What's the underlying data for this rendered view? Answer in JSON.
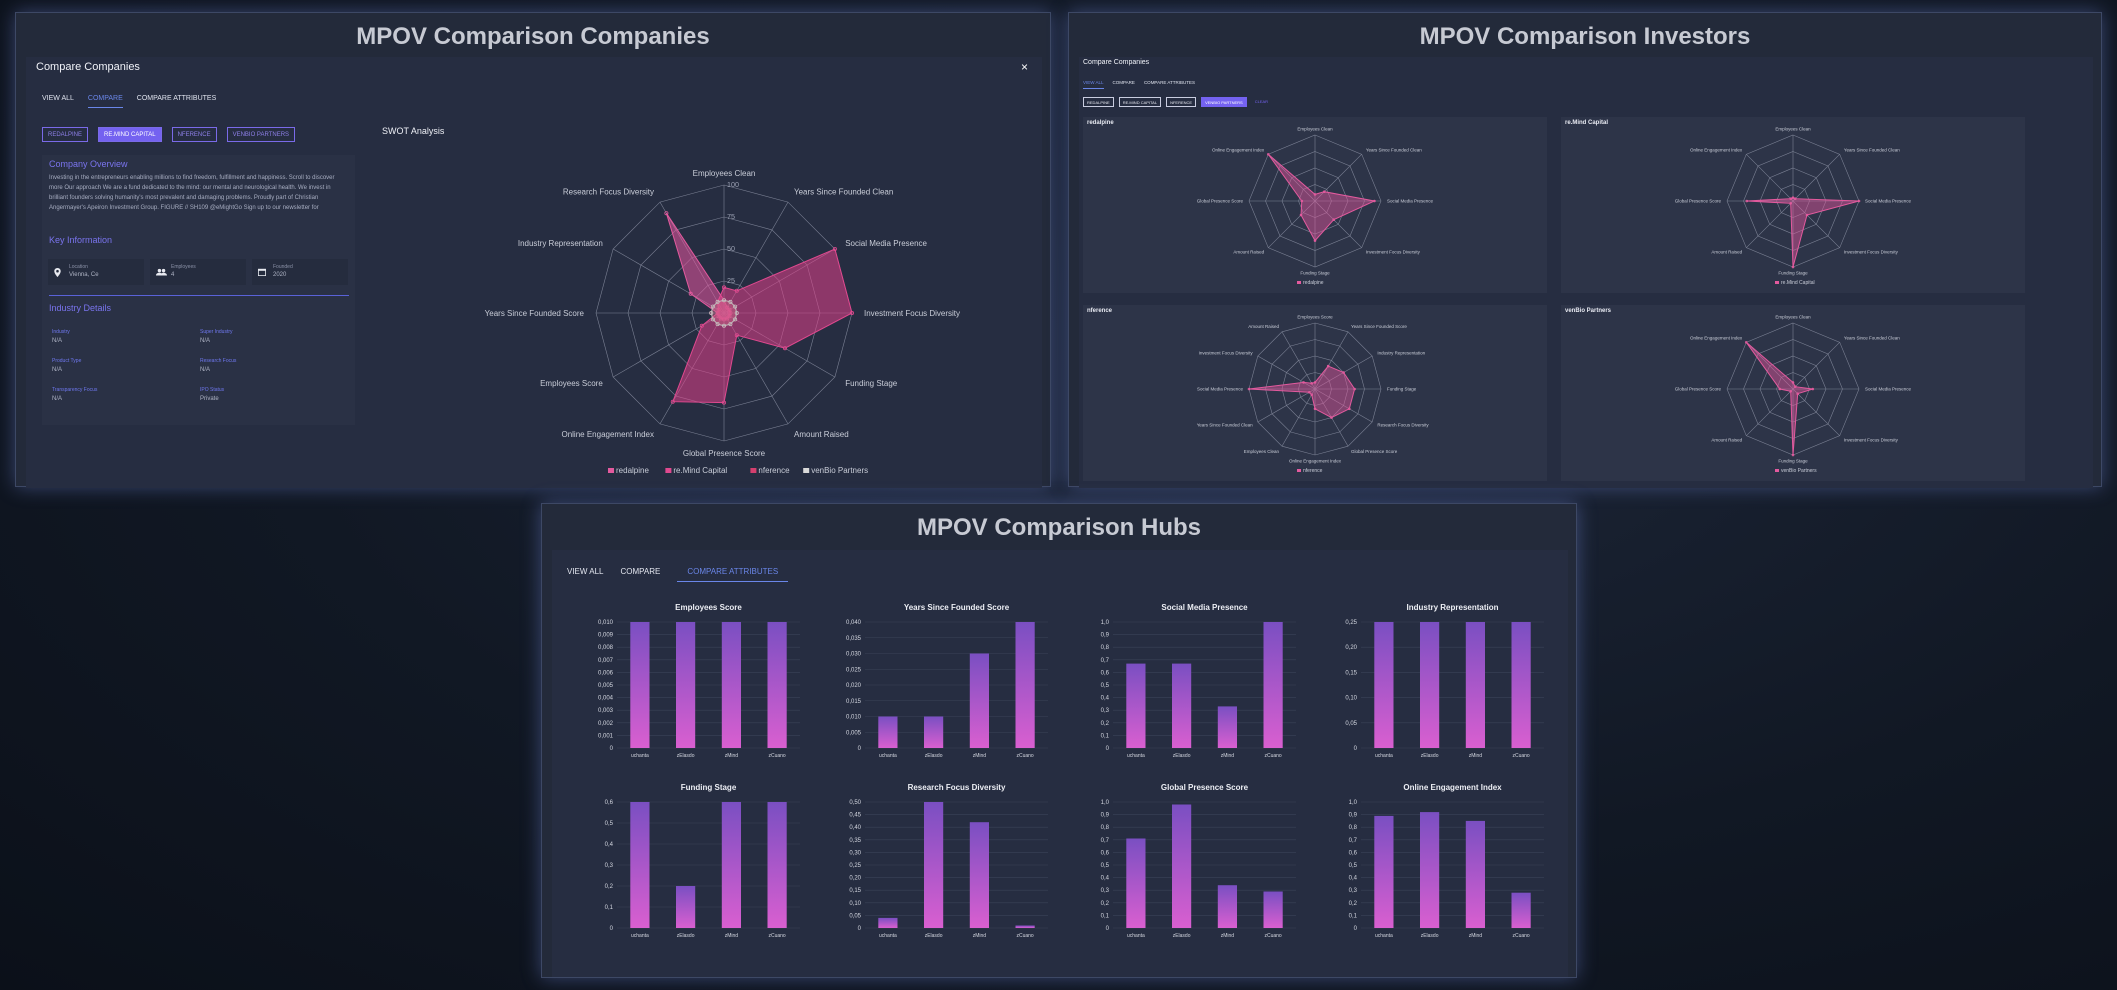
{
  "companies_panel": {
    "title": "MPOV Comparison Companies",
    "modal_title": "Compare Companies",
    "close_label": "×",
    "tabs": [
      "VIEW ALL",
      "COMPARE",
      "COMPARE ATTRIBUTES"
    ],
    "chips": [
      "REDALPINE",
      "RE.MIND CAPITAL",
      "NFERENCE",
      "VENBIO PARTNERS"
    ],
    "overview_heading": "Company Overview",
    "overview_text": "Investing in the entrepreneurs enabling millions to find freedom, fulfillment and happiness. Scroll to discover more Our approach We are a fund dedicated to the mind: our mental and neurological health. We invest in brilliant founders solving humanity's most prevalent and damaging problems. Proudly part of Christian Angermayer's Apeiron Investment Group. FIGURE // SH109 @eMightGo Sign up to our newsletter for",
    "key_info_heading": "Key Information",
    "key_info": [
      {
        "label": "Location",
        "value": "Vienna, Ce",
        "icon": "location-pin-icon"
      },
      {
        "label": "Employees",
        "value": "4",
        "icon": "people-icon"
      },
      {
        "label": "Founded",
        "value": "2020",
        "icon": "calendar-icon"
      }
    ],
    "industry_heading": "Industry Details",
    "industry": [
      {
        "label": "Industry",
        "value": "N/A"
      },
      {
        "label": "Super Industry",
        "value": "N/A"
      },
      {
        "label": "Product Type",
        "value": "N/A"
      },
      {
        "label": "Research Focus",
        "value": "N/A"
      },
      {
        "label": "Transparency Focus",
        "value": "N/A"
      },
      {
        "label": "IPO Status",
        "value": "Private"
      }
    ],
    "swot_heading": "SWOT Analysis",
    "radar": {
      "axes": [
        "Employees Clean",
        "Years Since Founded Clean",
        "Social Media Presence",
        "Investment Focus Diversity",
        "Funding Stage",
        "Amount Raised",
        "Global Presence Score",
        "Online Engagement Index",
        "Employees Score",
        "Years Since Founded Score",
        "Industry Representation",
        "Research Focus Diversity"
      ],
      "ticks": [
        "100",
        "75",
        "50",
        "25",
        "0"
      ],
      "legend": [
        "redalpine",
        "re.Mind Capital",
        "nference",
        "venBio Partners"
      ],
      "series": [
        {
          "name": "redalpine",
          "values": [
            10,
            5,
            5,
            5,
            5,
            5,
            5,
            5,
            5,
            5,
            30,
            90
          ]
        },
        {
          "name": "re.Mind Capital",
          "values": [
            20,
            20,
            100,
            100,
            55,
            20,
            70,
            80,
            20,
            5,
            5,
            10
          ]
        },
        {
          "name": "nference",
          "values": [
            10,
            10,
            10,
            10,
            10,
            10,
            10,
            10,
            10,
            10,
            10,
            10
          ]
        },
        {
          "name": "venBio Partners",
          "values": [
            10,
            10,
            10,
            10,
            10,
            10,
            10,
            10,
            10,
            10,
            10,
            10
          ]
        }
      ]
    }
  },
  "investors_panel": {
    "title": "MPOV Comparison Investors",
    "modal_title": "Compare Companies",
    "tabs": [
      "VIEW ALL",
      "COMPARE",
      "COMPARE ATTRIBUTES"
    ],
    "chips": [
      "REDALPINE",
      "RE.MIND CAPITAL",
      "NFERENCE",
      "VENBIO PARTNERS",
      "CLEAR"
    ],
    "radars": [
      {
        "title": "redalpine",
        "legend": "redalpine",
        "axes": [
          "Employees Clean",
          "Years Since Founded Clean",
          "Social Media Presence",
          "Investment Focus Diversity",
          "Funding Stage",
          "Amount Raised",
          "Global Presence Score",
          "Online Engagement Index"
        ],
        "values": [
          10,
          20,
          90,
          40,
          60,
          30,
          20,
          100
        ]
      },
      {
        "title": "re.Mind Capital",
        "legend": "re.Mind Capital",
        "axes": [
          "Employees Clean",
          "Years Since Founded Clean",
          "Social Media Presence",
          "Investment Focus Diversity",
          "Funding Stage",
          "Amount Raised",
          "Global Presence Score",
          "Online Engagement Index"
        ],
        "values": [
          5,
          5,
          100,
          30,
          100,
          5,
          70,
          5
        ]
      },
      {
        "title": "nference",
        "legend": "nference",
        "axes": [
          "Employees Score",
          "Years Since Founded Score",
          "Industry Representation",
          "Funding Stage",
          "Research Focus Diversity",
          "Global Presence Score",
          "Online Engagement Index",
          "Employees Clean",
          "Years Since Founded Clean",
          "Social Media Presence",
          "Investment Focus Diversity",
          "Amount Raised"
        ],
        "values": [
          10,
          40,
          50,
          60,
          60,
          50,
          30,
          10,
          10,
          100,
          20,
          10
        ]
      },
      {
        "title": "venBio Partners",
        "legend": "venBio Partners",
        "axes": [
          "Employees Clean",
          "Years Since Founded Clean",
          "Social Media Presence",
          "Investment Focus Diversity",
          "Funding Stage",
          "Amount Raised",
          "Global Presence Score",
          "Online Engagement Index"
        ],
        "values": [
          10,
          5,
          30,
          10,
          100,
          5,
          20,
          100
        ]
      }
    ]
  },
  "hubs_panel": {
    "title": "MPOV Comparison Hubs",
    "tabs": [
      "VIEW ALL",
      "COMPARE",
      "COMPARE ATTRIBUTES"
    ],
    "charts": [
      {
        "title": "Employees Score",
        "ticks": [
          "0,010",
          "0,009",
          "0,008",
          "0,007",
          "0,006",
          "0,005",
          "0,004",
          "0,003",
          "0,002",
          "0,001",
          "0"
        ],
        "max": 0.01,
        "categories": [
          "uchanta",
          "zElasdo",
          "zMind",
          "zCuano"
        ],
        "values": [
          0.01,
          0.01,
          0.01,
          0.01
        ]
      },
      {
        "title": "Years Since Founded Score",
        "ticks": [
          "0,040",
          "0,035",
          "0,030",
          "0,025",
          "0,020",
          "0,015",
          "0,010",
          "0,005",
          "0"
        ],
        "max": 0.04,
        "categories": [
          "uchanta",
          "zElasdo",
          "zMind",
          "zCuano"
        ],
        "values": [
          0.01,
          0.01,
          0.03,
          0.04
        ]
      },
      {
        "title": "Social Media Presence",
        "ticks": [
          "1,0",
          "0,9",
          "0,8",
          "0,7",
          "0,6",
          "0,5",
          "0,4",
          "0,3",
          "0,2",
          "0,1",
          "0"
        ],
        "max": 1.0,
        "categories": [
          "uchanta",
          "zElasdo",
          "zMind",
          "zCuano"
        ],
        "values": [
          0.67,
          0.67,
          0.33,
          1.0
        ]
      },
      {
        "title": "Industry Representation",
        "ticks": [
          "0,25",
          "0,20",
          "0,15",
          "0,10",
          "0,05",
          "0"
        ],
        "max": 0.25,
        "categories": [
          "uchanta",
          "zElasdo",
          "zMind",
          "zCuano"
        ],
        "values": [
          0.25,
          0.25,
          0.25,
          0.25
        ]
      },
      {
        "title": "Funding Stage",
        "ticks": [
          "0,6",
          "0,5",
          "0,4",
          "0,3",
          "0,2",
          "0,1",
          "0"
        ],
        "max": 0.6,
        "categories": [
          "uchanta",
          "zElasdo",
          "zMind",
          "zCuano"
        ],
        "values": [
          0.6,
          0.2,
          0.6,
          0.6
        ]
      },
      {
        "title": "Research Focus Diversity",
        "ticks": [
          "0,50",
          "0,45",
          "0,40",
          "0,35",
          "0,30",
          "0,25",
          "0,20",
          "0,15",
          "0,10",
          "0,05",
          "0"
        ],
        "max": 0.5,
        "categories": [
          "uchanta",
          "zElasdo",
          "zMind",
          "zCuano"
        ],
        "values": [
          0.04,
          0.5,
          0.42,
          0.01
        ]
      },
      {
        "title": "Global Presence Score",
        "ticks": [
          "1,0",
          "0,9",
          "0,8",
          "0,7",
          "0,6",
          "0,5",
          "0,4",
          "0,3",
          "0,2",
          "0,1",
          "0"
        ],
        "max": 1.0,
        "categories": [
          "uchanta",
          "zElasdo",
          "zMind",
          "zCuano"
        ],
        "values": [
          0.71,
          0.98,
          0.34,
          0.29
        ]
      },
      {
        "title": "Online Engagement Index",
        "ticks": [
          "1,0",
          "0,9",
          "0,8",
          "0,7",
          "0,6",
          "0,5",
          "0,4",
          "0,3",
          "0,2",
          "0,1",
          "0"
        ],
        "max": 1.0,
        "categories": [
          "uchanta",
          "zElasdo",
          "zMind",
          "zCuano"
        ],
        "values": [
          0.89,
          0.92,
          0.85,
          0.28
        ]
      }
    ]
  }
}
